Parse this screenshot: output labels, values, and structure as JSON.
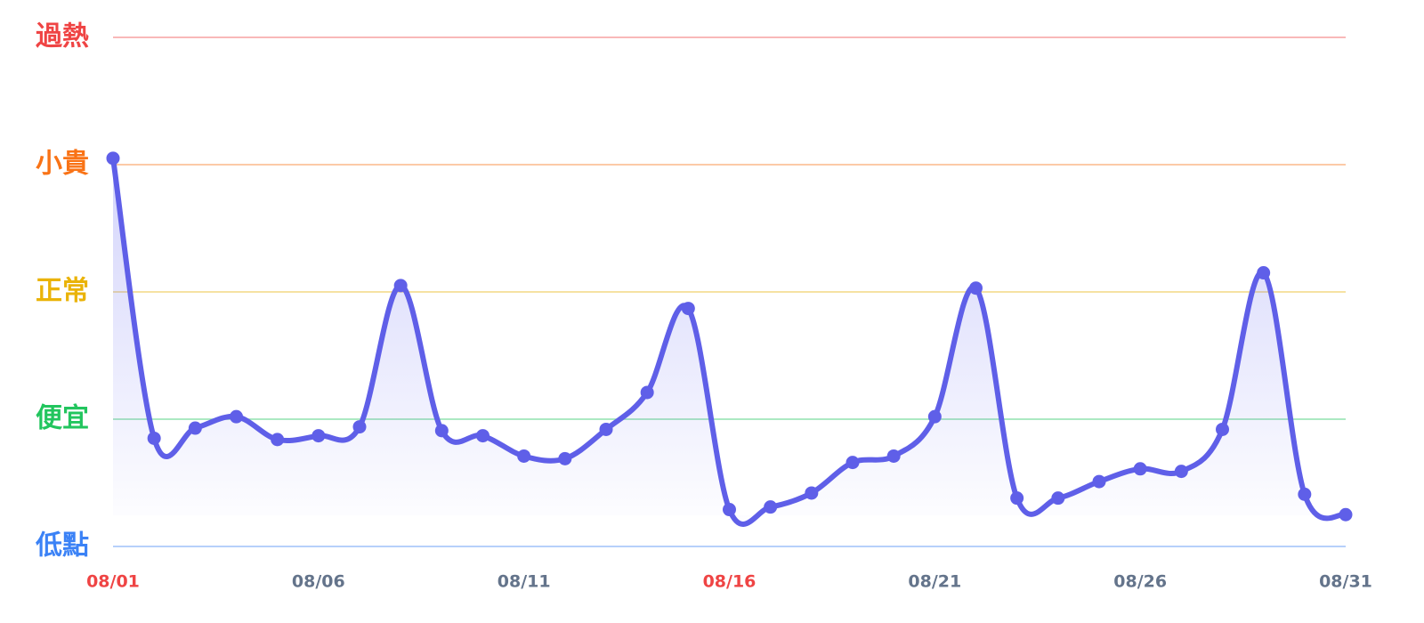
{
  "chart_data": {
    "type": "line",
    "categories": [
      "08/01",
      null,
      null,
      null,
      null,
      "08/06",
      null,
      null,
      null,
      null,
      "08/11",
      null,
      null,
      null,
      null,
      "08/16",
      null,
      null,
      null,
      null,
      "08/21",
      null,
      null,
      null,
      null,
      "08/26",
      null,
      null,
      null,
      null,
      "08/31"
    ],
    "xtick_colors": [
      "#ef4444",
      null,
      null,
      null,
      null,
      "#64748b",
      null,
      null,
      null,
      null,
      "#64748b",
      null,
      null,
      null,
      null,
      "#ef4444",
      null,
      null,
      null,
      null,
      "#64748b",
      null,
      null,
      null,
      null,
      "#64748b",
      null,
      null,
      null,
      null,
      "#64748b"
    ],
    "series": [
      {
        "color": "#5f5fe8",
        "values": [
          3.05,
          0.85,
          0.93,
          1.02,
          0.84,
          0.87,
          0.94,
          2.05,
          0.91,
          0.87,
          0.71,
          0.69,
          0.92,
          1.21,
          1.87,
          0.29,
          0.31,
          0.42,
          0.66,
          0.71,
          1.02,
          2.03,
          0.38,
          0.38,
          0.51,
          0.61,
          0.59,
          0.92,
          2.15,
          0.41,
          0.25
        ]
      }
    ],
    "ylim": [
      0,
      4
    ],
    "yticks": [
      {
        "value": 0,
        "label": "低點"
      },
      {
        "value": 1,
        "label": "便宜"
      },
      {
        "value": 2,
        "label": "正常"
      },
      {
        "value": 3,
        "label": "小貴"
      },
      {
        "value": 4,
        "label": "過熱"
      }
    ],
    "ytick_colors": [
      "#3b82f6",
      "#22c55e",
      "#eab308",
      "#f97316",
      "#ef4444"
    ],
    "grid": true
  }
}
